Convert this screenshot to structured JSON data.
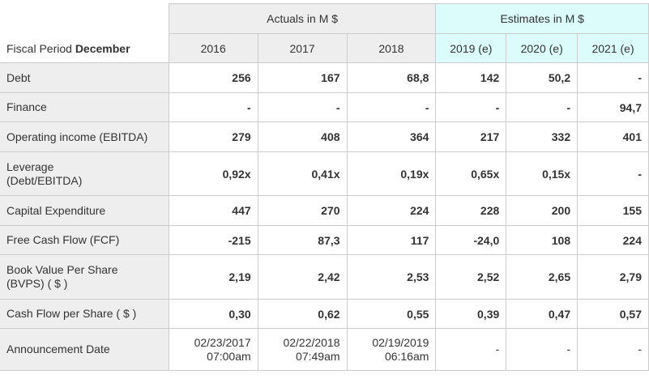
{
  "header": {
    "fiscal_prefix": "Fiscal Period",
    "fiscal_month": "December",
    "actuals": "Actuals in M $",
    "estimates": "Estimates in M $",
    "years": [
      "2016",
      "2017",
      "2018",
      "2019 (e)",
      "2020 (e)",
      "2021 (e)"
    ]
  },
  "colors": {
    "estimates_bg": "#dcfcfc",
    "label_bg": "#eeeeee"
  },
  "rows": [
    {
      "label": "Debt",
      "values": [
        "256",
        "167",
        "68,8",
        "142",
        "50,2",
        "-"
      ]
    },
    {
      "label": "Finance",
      "values": [
        "-",
        "-",
        "-",
        "-",
        "-",
        "94,7"
      ]
    },
    {
      "label": "Operating income (EBITDA)",
      "values": [
        "279",
        "408",
        "364",
        "217",
        "332",
        "401"
      ]
    },
    {
      "label": "Leverage (Debt/EBITDA)",
      "values": [
        "0,92x",
        "0,41x",
        "0,19x",
        "0,65x",
        "0,15x",
        "-"
      ]
    },
    {
      "label": "Capital Expenditure",
      "values": [
        "447",
        "270",
        "224",
        "228",
        "200",
        "155"
      ]
    },
    {
      "label": "Free Cash Flow (FCF)",
      "values": [
        "-215",
        "87,3",
        "117",
        "-24,0",
        "108",
        "224"
      ]
    },
    {
      "label": "Book Value Per Share (BVPS) ( $ )",
      "values": [
        "2,19",
        "2,42",
        "2,53",
        "2,52",
        "2,65",
        "2,79"
      ]
    },
    {
      "label": "Cash Flow per Share ( $ )",
      "values": [
        "0,30",
        "0,62",
        "0,55",
        "0,39",
        "0,47",
        "0,57"
      ]
    }
  ],
  "announcement": {
    "label": "Announcement Date",
    "values": [
      [
        "02/23/2017",
        "07:00am"
      ],
      [
        "02/22/2018",
        "07:49am"
      ],
      [
        "02/19/2019",
        "06:16am"
      ],
      [
        "-",
        ""
      ],
      [
        "-",
        ""
      ],
      [
        "-",
        ""
      ]
    ]
  }
}
